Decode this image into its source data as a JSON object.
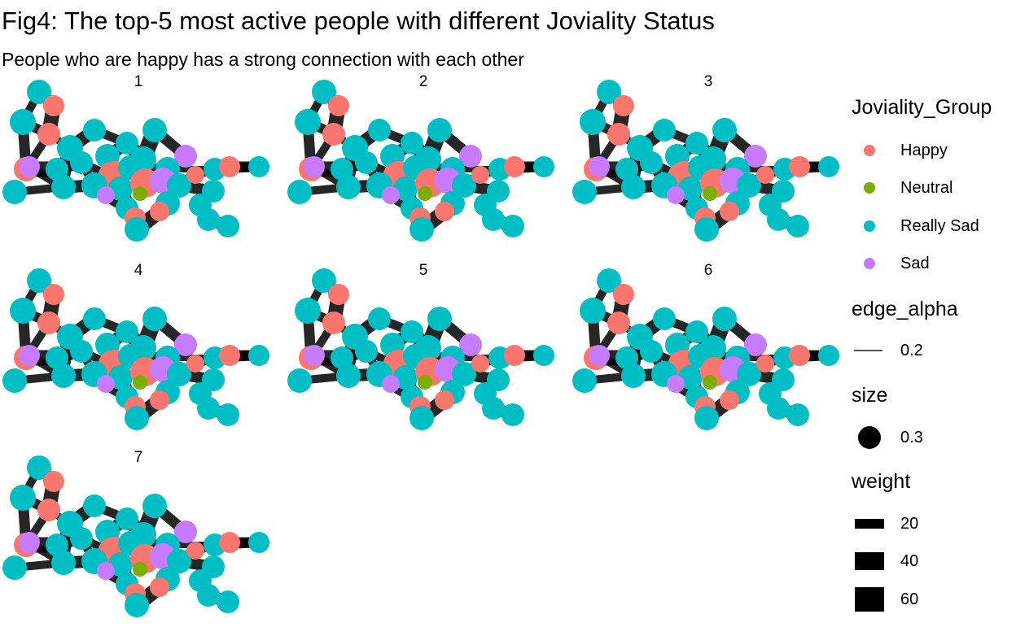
{
  "title": "Fig4: The top-5 most active people with different Joviality Status",
  "subtitle": "People who are happy has a strong connection with each other",
  "colors": {
    "Happy": "#F8766D",
    "Neutral": "#7CAE00",
    "Really Sad": "#00BFC4",
    "Sad": "#C77CFF",
    "edge": "#000000"
  },
  "panels": [
    "1",
    "2",
    "3",
    "4",
    "5",
    "6",
    "7"
  ],
  "legend": {
    "group_title": "Joviality_Group",
    "groups": [
      "Happy",
      "Neutral",
      "Really Sad",
      "Sad"
    ],
    "edge_alpha_title": "edge_alpha",
    "edge_alpha_value": "0.2",
    "size_title": "size",
    "size_value": "0.3",
    "weight_title": "weight",
    "weight_values": [
      "20",
      "40",
      "60"
    ]
  }
}
